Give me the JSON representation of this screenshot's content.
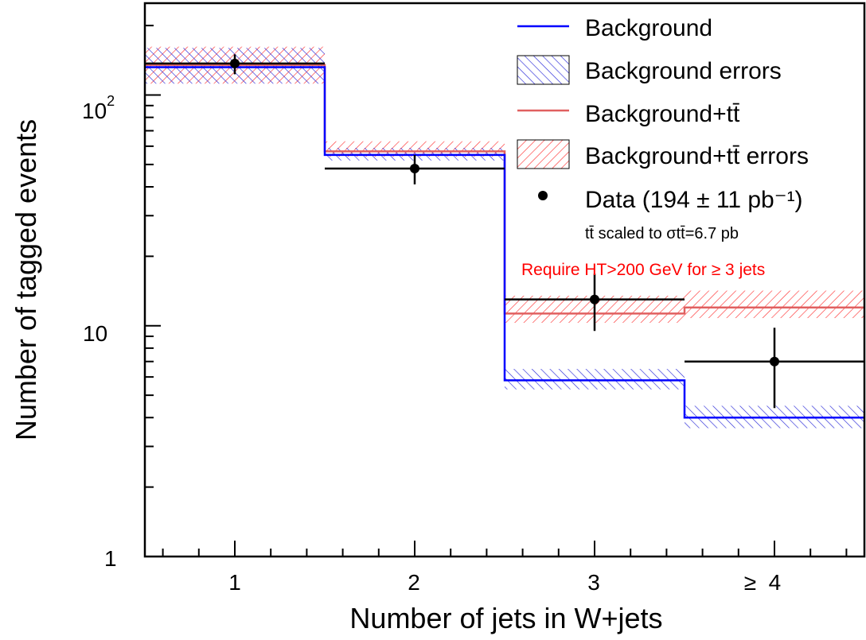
{
  "chart_data": {
    "type": "line",
    "xlabel": "Number of jets in W+jets",
    "ylabel": "Number of tagged events",
    "x_tick_labels": [
      "1",
      "2",
      "3",
      "≥  4"
    ],
    "y_tick_labels": [
      {
        "base": "10",
        "exp": "2"
      },
      {
        "base": "10",
        "exp": ""
      },
      {
        "base": "1",
        "exp": ""
      }
    ],
    "ylog": true,
    "ylim": [
      1,
      250
    ],
    "xlim": [
      0.5,
      4.5
    ],
    "colors": {
      "background": "#0000ff",
      "background_errors": "#0000ff",
      "background_ttbar": "#e06060",
      "background_ttbar_errors": "#ff3030",
      "data": "#000000",
      "annotation": "#ff0000"
    },
    "bins": [
      {
        "label": "1",
        "lo": 0.5,
        "hi": 1.5
      },
      {
        "label": "2",
        "lo": 1.5,
        "hi": 2.5
      },
      {
        "label": "3",
        "lo": 2.5,
        "hi": 3.5
      },
      {
        "label": "≥ 4",
        "lo": 3.5,
        "hi": 4.5
      }
    ],
    "series": [
      {
        "name": "Background",
        "values": [
          132,
          55,
          5.8,
          4.0
        ],
        "err_lo": [
          112,
          52,
          5.3,
          3.6
        ],
        "err_hi": [
          160,
          59,
          6.5,
          4.5
        ]
      },
      {
        "name": "Background+tt̄",
        "values": [
          135,
          57,
          11.3,
          12.0
        ],
        "err_lo": [
          112,
          54,
          10.3,
          10.8
        ],
        "err_hi": [
          162,
          63,
          13.5,
          14.2
        ]
      }
    ],
    "data_points": {
      "name": "Data (194 ± 11 pb⁻¹)",
      "x": [
        1,
        2,
        3,
        4
      ],
      "y": [
        137,
        48,
        13,
        7
      ],
      "y_lo": [
        123,
        41,
        9.5,
        4.4
      ],
      "y_hi": [
        150,
        55,
        16.8,
        9.8
      ],
      "x_lo": [
        0.5,
        1.5,
        2.5,
        3.5
      ],
      "x_hi": [
        1.5,
        2.5,
        3.5,
        4.5
      ]
    },
    "legend": {
      "placement": "top-right",
      "entries": [
        {
          "kind": "line",
          "color": "#0000ff",
          "label": "Background"
        },
        {
          "kind": "hatch-blue",
          "label": "Background errors"
        },
        {
          "kind": "line",
          "color": "#e06060",
          "label": "Background+tt̄"
        },
        {
          "kind": "hatch-red",
          "label": "Background+tt̄ errors"
        },
        {
          "kind": "marker",
          "label": "Data (194 ± 11 pb⁻¹)"
        }
      ],
      "note": "tt̄ scaled to σtt̄=6.7 pb"
    },
    "annotation": "Require HT>200 GeV for ≥ 3 jets"
  }
}
